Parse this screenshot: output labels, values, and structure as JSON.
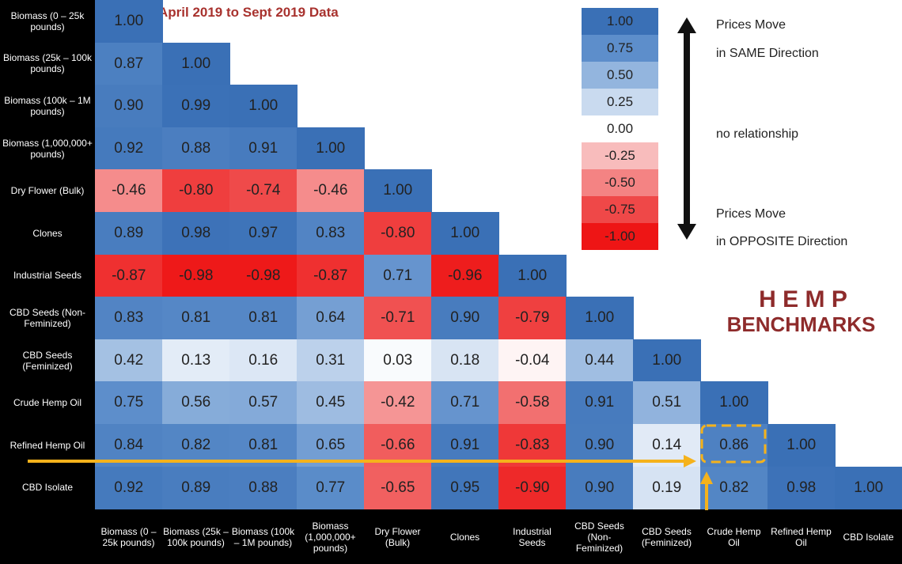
{
  "chart_data": {
    "type": "heatmap",
    "title": "April 2019 to Sept 2019 Data",
    "categories": [
      "Biomass (0 – 25k pounds)",
      "Biomass (25k – 100k pounds)",
      "Biomass (100k – 1M pounds)",
      "Biomass (1,000,000+ pounds)",
      "Dry Flower (Bulk)",
      "Clones",
      "Industrial Seeds",
      "CBD Seeds (Non-Feminized)",
      "CBD Seeds (Feminized)",
      "Crude Hemp Oil",
      "Refined Hemp Oil",
      "CBD Isolate"
    ],
    "values": [
      [
        1
      ],
      [
        0.87,
        1
      ],
      [
        0.9,
        0.99,
        1
      ],
      [
        0.92,
        0.88,
        0.91,
        1
      ],
      [
        -0.46,
        -0.8,
        -0.74,
        -0.46,
        1
      ],
      [
        0.89,
        0.98,
        0.97,
        0.83,
        -0.8,
        1
      ],
      [
        -0.87,
        -0.98,
        -0.98,
        -0.87,
        0.71,
        -0.96,
        1
      ],
      [
        0.83,
        0.81,
        0.81,
        0.64,
        -0.71,
        0.9,
        -0.79,
        1
      ],
      [
        0.42,
        0.13,
        0.16,
        0.31,
        0.03,
        0.18,
        -0.04,
        0.44,
        1
      ],
      [
        0.75,
        0.56,
        0.57,
        0.45,
        -0.42,
        0.71,
        -0.58,
        0.91,
        0.51,
        1
      ],
      [
        0.84,
        0.82,
        0.81,
        0.65,
        -0.66,
        0.91,
        -0.83,
        0.9,
        0.14,
        0.86,
        1
      ],
      [
        0.92,
        0.89,
        0.88,
        0.77,
        -0.65,
        0.95,
        -0.9,
        0.9,
        0.19,
        0.82,
        0.98,
        1
      ]
    ],
    "value_labels": [
      [
        "1.00"
      ],
      [
        "0.87",
        "1.00"
      ],
      [
        "0.90",
        "0.99",
        "1.00"
      ],
      [
        "0.92",
        "0.88",
        "0.91",
        "1.00"
      ],
      [
        "-0.46",
        "-0.80",
        "-0.74",
        "-0.46",
        "1.00"
      ],
      [
        "0.89",
        "0.98",
        "0.97",
        "0.83",
        "-0.80",
        "1.00"
      ],
      [
        "-0.87",
        "-0.98",
        "-0.98",
        "-0.87",
        "0.71",
        "-0.96",
        "1.00"
      ],
      [
        "0.83",
        "0.81",
        "0.81",
        "0.64",
        "-0.71",
        "0.90",
        "-0.79",
        "1.00"
      ],
      [
        "0.42",
        "0.13",
        "0.16",
        "0.31",
        "0.03",
        "0.18",
        "-0.04",
        "0.44",
        "1.00"
      ],
      [
        "0.75",
        "0.56",
        "0.57",
        "0.45",
        "-0.42",
        "0.71",
        "-0.58",
        "0.91",
        "0.51",
        "1.00"
      ],
      [
        "0.84",
        "0.82",
        "0.81",
        "0.65",
        "-0.66",
        "0.91",
        "-0.83",
        "0.90",
        "0.14",
        "0.86",
        "1.00"
      ],
      [
        "0.92",
        "0.89",
        "0.88",
        "0.77",
        "-0.65",
        "0.95",
        "-0.90",
        "0.90",
        "0.19",
        "0.82",
        "0.98",
        "1.00"
      ]
    ],
    "colorscale": [
      {
        "value": 1,
        "label": "1.00",
        "color": "#3a70b6"
      },
      {
        "value": 0.75,
        "label": "0.75",
        "color": "#5d8ecb"
      },
      {
        "value": 0.5,
        "label": "0.50",
        "color": "#93b5de"
      },
      {
        "value": 0.25,
        "label": "0.25",
        "color": "#c9daef"
      },
      {
        "value": 0,
        "label": "0.00",
        "color": "#ffffff"
      },
      {
        "value": -0.25,
        "label": "-0.25",
        "color": "#f8bcbc"
      },
      {
        "value": -0.5,
        "label": "-0.50",
        "color": "#f48383"
      },
      {
        "value": -0.75,
        "label": "-0.75",
        "color": "#ef4848"
      },
      {
        "value": -1,
        "label": "-1.00",
        "color": "#ee1515"
      }
    ],
    "legend_text": {
      "top": [
        "Prices Move",
        "in SAME Direction"
      ],
      "middle": "no relationship",
      "bottom": [
        "Prices Move",
        "in OPPOSITE Direction"
      ]
    },
    "brand": [
      "H E M P",
      "BENCHMARKS"
    ]
  }
}
